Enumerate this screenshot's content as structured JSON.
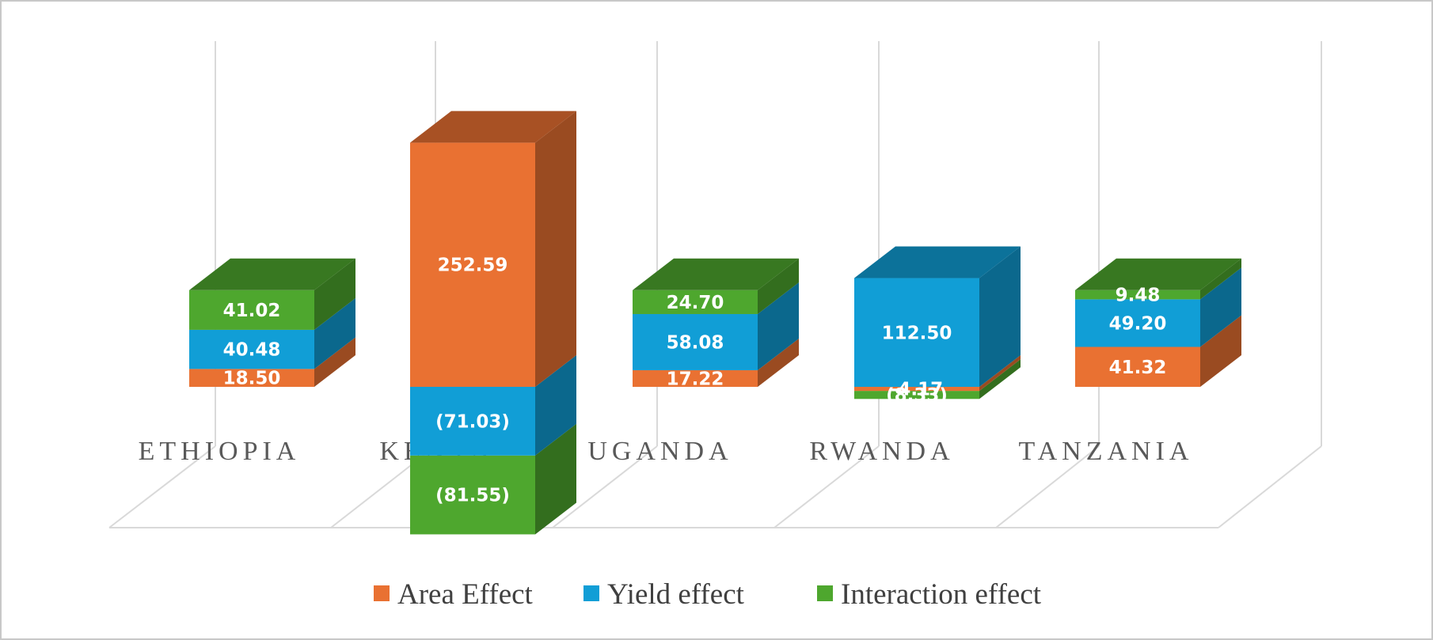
{
  "chart_data": {
    "type": "bar",
    "stacked": true,
    "three_d": true,
    "categories": [
      "ETHIOPIA",
      "KENYA",
      "UGANDA",
      "RWANDA",
      "TANZANIA"
    ],
    "series": [
      {
        "name": "Area Effect",
        "color": "#E97132",
        "values": [
          18.5,
          252.59,
          17.22,
          -4.17,
          41.32
        ],
        "labels": [
          "18.50",
          "252.59",
          "17.22",
          "-4.17",
          "41.32"
        ]
      },
      {
        "name": "Yield effect",
        "color": "#119ED6",
        "values": [
          40.48,
          -71.03,
          58.08,
          112.5,
          49.2
        ],
        "labels": [
          "40.48",
          "(71.03)",
          "58.08",
          "112.50",
          "49.20"
        ]
      },
      {
        "name": "Interaction effect",
        "color": "#4EA72E",
        "values": [
          41.02,
          -81.55,
          24.7,
          -8.33,
          9.48
        ],
        "labels": [
          "41.02",
          "(81.55)",
          "24.70",
          "(8.33)",
          "9.48"
        ]
      }
    ],
    "legend_position": "bottom",
    "grid": true
  }
}
